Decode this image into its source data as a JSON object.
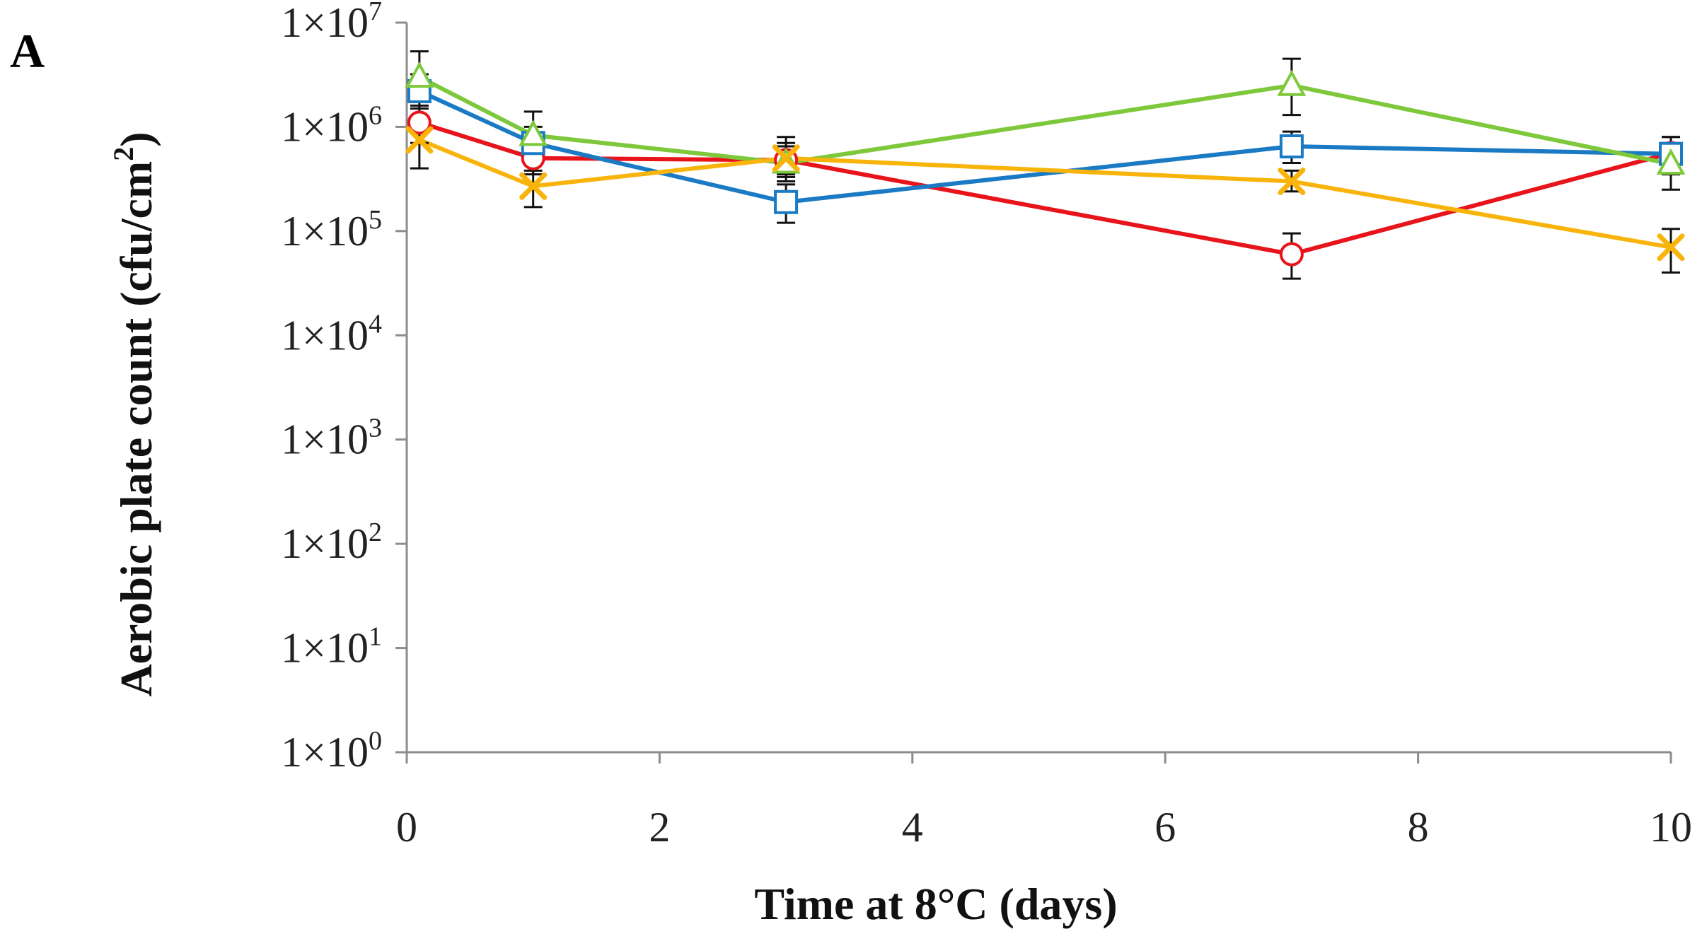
{
  "panel_label": "A",
  "chart_data": {
    "type": "line",
    "title": "",
    "xlabel": "Time at 8°C (days)",
    "ylabel_prefix": "Aerobic plate count (cfu/cm",
    "ylabel_sup": "2",
    "ylabel_suffix": ")",
    "xlim": [
      0,
      10
    ],
    "ylim_log10": [
      0,
      7
    ],
    "y_scale": "log",
    "x_ticks": [
      0,
      2,
      4,
      6,
      8,
      10
    ],
    "x_tick_labels": [
      "0",
      "2",
      "4",
      "6",
      "8",
      "10"
    ],
    "y_ticks_log10": [
      0,
      1,
      2,
      3,
      4,
      5,
      6,
      7
    ],
    "y_tick_labels": [
      {
        "base": "1×10",
        "exp": "0"
      },
      {
        "base": "1×10",
        "exp": "1"
      },
      {
        "base": "1×10",
        "exp": "2"
      },
      {
        "base": "1×10",
        "exp": "3"
      },
      {
        "base": "1×10",
        "exp": "4"
      },
      {
        "base": "1×10",
        "exp": "5"
      },
      {
        "base": "1×10",
        "exp": "6"
      },
      {
        "base": "1×10",
        "exp": "7"
      }
    ],
    "grid": false,
    "legend": "none",
    "series": [
      {
        "name": "red-circle",
        "color": "#e8141b",
        "marker": "circle",
        "x": [
          0.1,
          1,
          3,
          7,
          10
        ],
        "y": [
          1100000,
          500000,
          480000,
          60000,
          560000
        ],
        "err_low": [
          700000,
          350000,
          350000,
          35000,
          350000
        ],
        "err_high": [
          1600000,
          700000,
          650000,
          95000,
          800000
        ]
      },
      {
        "name": "blue-square",
        "color": "#1b7ac4",
        "marker": "square",
        "x": [
          0.1,
          1,
          3,
          7,
          10
        ],
        "y": [
          2200000,
          700000,
          190000,
          650000,
          550000
        ],
        "err_low": [
          1500000,
          480000,
          120000,
          450000,
          380000
        ],
        "err_high": [
          3200000,
          1000000,
          280000,
          900000,
          800000
        ]
      },
      {
        "name": "green-triangle",
        "color": "#7ec83b",
        "marker": "triangle",
        "x": [
          0.1,
          1,
          3,
          7,
          10
        ],
        "y": [
          3000000,
          830000,
          450000,
          2500000,
          440000
        ],
        "err_low": [
          1800000,
          500000,
          300000,
          1300000,
          250000
        ],
        "err_high": [
          5300000,
          1400000,
          700000,
          4500000,
          700000
        ]
      },
      {
        "name": "yellow-x",
        "color": "#f9b40c",
        "marker": "x",
        "x": [
          0.1,
          1,
          3,
          7,
          10
        ],
        "y": [
          750000,
          270000,
          500000,
          300000,
          70000
        ],
        "err_low": [
          400000,
          170000,
          330000,
          240000,
          40000
        ],
        "err_high": [
          1100000,
          380000,
          800000,
          380000,
          105000
        ]
      }
    ]
  }
}
